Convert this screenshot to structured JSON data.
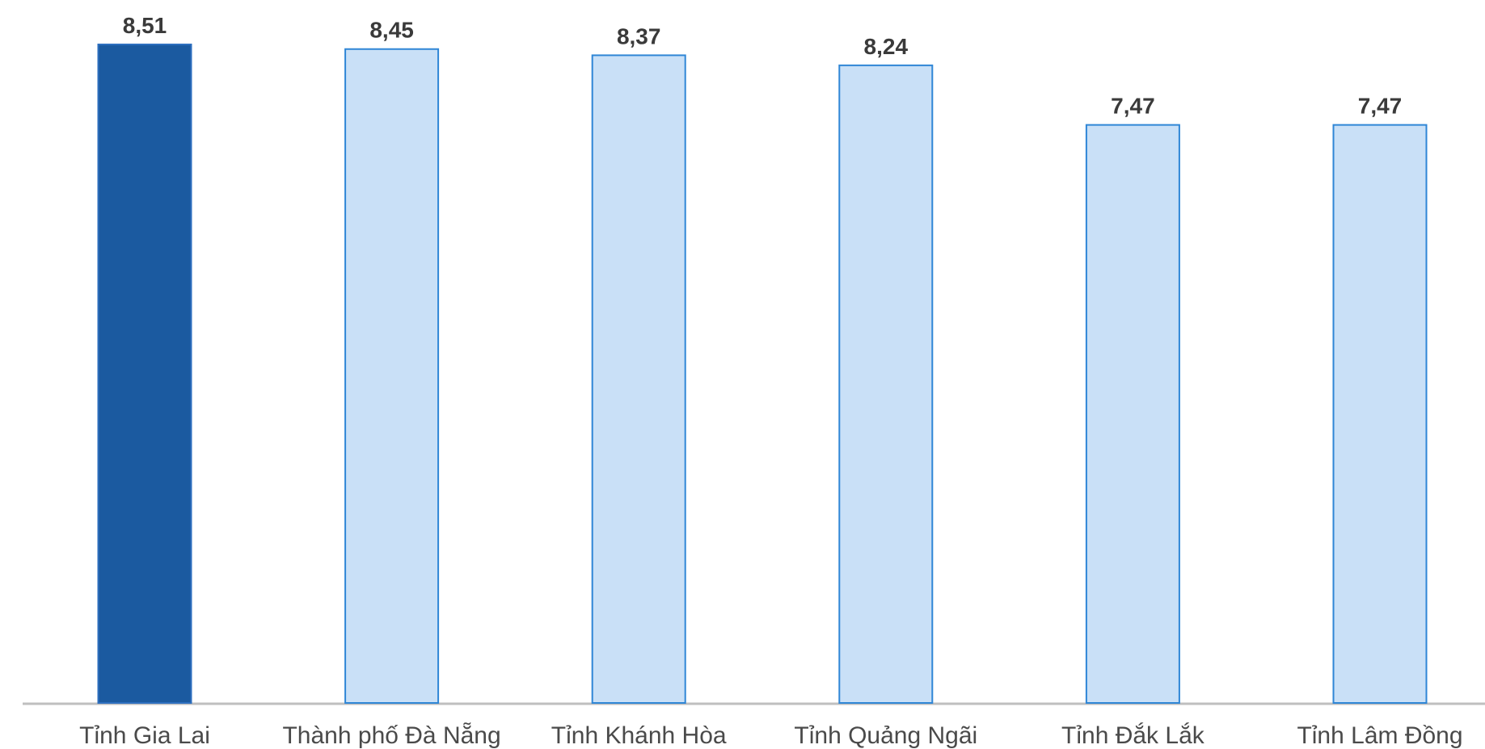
{
  "chart_data": {
    "type": "bar",
    "categories": [
      "Tỉnh Gia Lai",
      "Thành phố Đà Nẵng",
      "Tỉnh Khánh Hòa",
      "Tỉnh Quảng Ngãi",
      "Tỉnh Đắk Lắk",
      "Tỉnh Lâm Đồng"
    ],
    "values": [
      8.51,
      8.45,
      8.37,
      8.24,
      7.47,
      7.47
    ],
    "value_labels": [
      "8,51",
      "8,45",
      "8,37",
      "8,24",
      "7,47",
      "7,47"
    ],
    "title": "",
    "xlabel": "",
    "ylabel": "",
    "ylim": [
      0,
      8.51
    ],
    "grid": false,
    "highlight_index": 0,
    "colors": {
      "highlight_fill": "#1b5aa0",
      "highlight_stroke": "#2e6fbf",
      "bar_fill": "#c9e0f7",
      "bar_stroke": "#2f86d6",
      "baseline": "#bfbfbf"
    }
  }
}
